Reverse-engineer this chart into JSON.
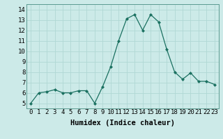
{
  "x": [
    0,
    1,
    2,
    3,
    4,
    5,
    6,
    7,
    8,
    9,
    10,
    11,
    12,
    13,
    14,
    15,
    16,
    17,
    18,
    19,
    20,
    21,
    22,
    23
  ],
  "y": [
    5.0,
    6.0,
    6.1,
    6.3,
    6.0,
    6.0,
    6.2,
    6.2,
    5.0,
    6.6,
    8.5,
    11.0,
    13.1,
    13.5,
    12.0,
    13.5,
    12.8,
    10.2,
    8.0,
    7.3,
    7.9,
    7.1,
    7.1,
    6.8
  ],
  "line_color": "#1a7060",
  "marker": "D",
  "marker_size": 2,
  "bg_color": "#cceae8",
  "grid_color": "#b0d8d4",
  "xlabel": "Humidex (Indice chaleur)",
  "xlim": [
    -0.5,
    23.5
  ],
  "ylim": [
    4.5,
    14.5
  ],
  "yticks": [
    5,
    6,
    7,
    8,
    9,
    10,
    11,
    12,
    13,
    14
  ],
  "font_size": 6.5,
  "xlabel_fontsize": 7.5
}
